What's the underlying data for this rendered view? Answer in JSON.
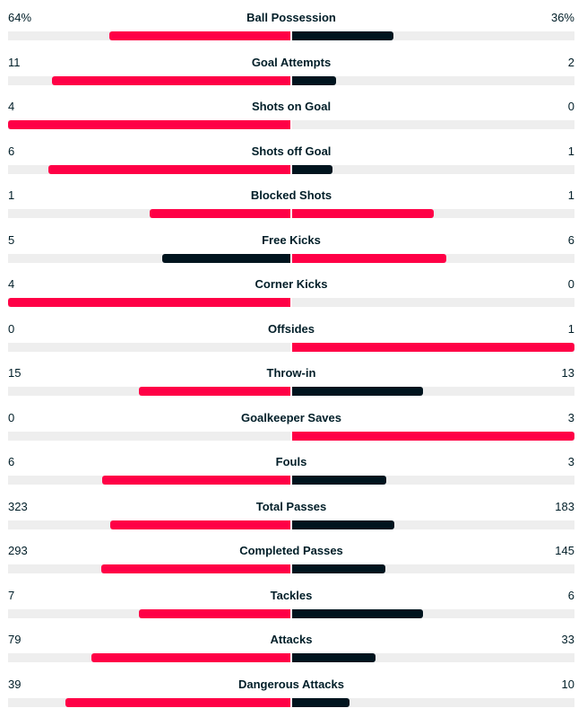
{
  "colors": {
    "higher": "#ff0046",
    "lower": "#00141e",
    "track": "#eeeeee",
    "text": "#001e28"
  },
  "stats": [
    {
      "name": "Ball Possession",
      "home": "64%",
      "away": "36%",
      "home_share": 0.64,
      "away_share": 0.36
    },
    {
      "name": "Goal Attempts",
      "home": "11",
      "away": "2",
      "home_share": 0.846,
      "away_share": 0.154
    },
    {
      "name": "Shots on Goal",
      "home": "4",
      "away": "0",
      "home_share": 1.0,
      "away_share": 0.0
    },
    {
      "name": "Shots off Goal",
      "home": "6",
      "away": "1",
      "home_share": 0.857,
      "away_share": 0.143
    },
    {
      "name": "Blocked Shots",
      "home": "1",
      "away": "1",
      "home_share": 0.5,
      "away_share": 0.5
    },
    {
      "name": "Free Kicks",
      "home": "5",
      "away": "6",
      "home_share": 0.455,
      "away_share": 0.545
    },
    {
      "name": "Corner Kicks",
      "home": "4",
      "away": "0",
      "home_share": 1.0,
      "away_share": 0.0
    },
    {
      "name": "Offsides",
      "home": "0",
      "away": "1",
      "home_share": 0.0,
      "away_share": 1.0
    },
    {
      "name": "Throw-in",
      "home": "15",
      "away": "13",
      "home_share": 0.536,
      "away_share": 0.464
    },
    {
      "name": "Goalkeeper Saves",
      "home": "0",
      "away": "3",
      "home_share": 0.0,
      "away_share": 1.0
    },
    {
      "name": "Fouls",
      "home": "6",
      "away": "3",
      "home_share": 0.667,
      "away_share": 0.333
    },
    {
      "name": "Total Passes",
      "home": "323",
      "away": "183",
      "home_share": 0.638,
      "away_share": 0.362
    },
    {
      "name": "Completed Passes",
      "home": "293",
      "away": "145",
      "home_share": 0.669,
      "away_share": 0.331
    },
    {
      "name": "Tackles",
      "home": "7",
      "away": "6",
      "home_share": 0.538,
      "away_share": 0.462
    },
    {
      "name": "Attacks",
      "home": "79",
      "away": "33",
      "home_share": 0.705,
      "away_share": 0.295
    },
    {
      "name": "Dangerous Attacks",
      "home": "39",
      "away": "10",
      "home_share": 0.796,
      "away_share": 0.204
    }
  ]
}
